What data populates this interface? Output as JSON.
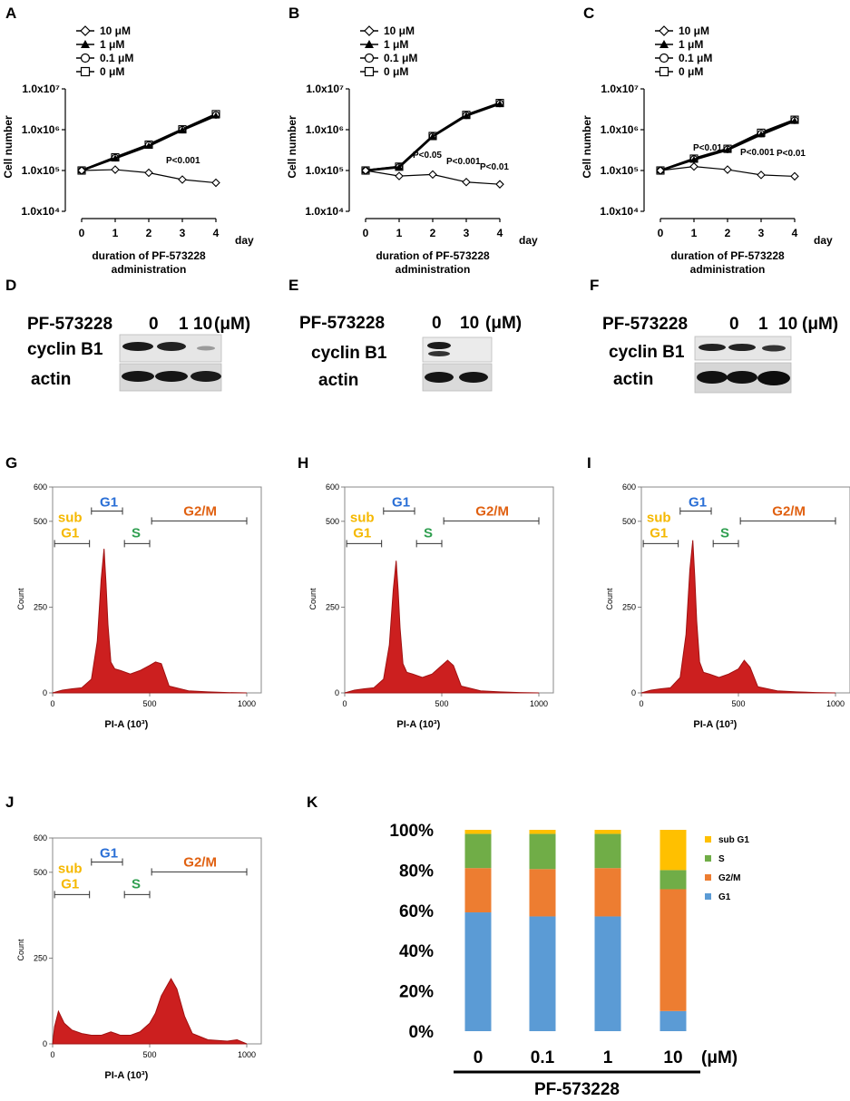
{
  "colors": {
    "hist_fill": "#cc1f1f",
    "hist_stroke": "#a01010",
    "gate_sub": "#f5b800",
    "gate_g1": "#2a6fd6",
    "gate_s": "#2e9e4f",
    "gate_g2m": "#e06010",
    "bar_g1": "#5b9bd5",
    "bar_g2m": "#ed7d31",
    "bar_s": "#70ad47",
    "bar_sub": "#ffc000"
  },
  "panels": {
    "growth": [
      {
        "label": "A",
        "pvalues": [
          "P<0.001"
        ]
      },
      {
        "label": "B",
        "pvalues": [
          "P<0.05",
          "P<0.001",
          "P<0.01"
        ]
      },
      {
        "label": "C",
        "pvalues": [
          "P<0.01",
          "P<0.001",
          "P<0.01"
        ]
      }
    ],
    "growth_common": {
      "y_ticks": [
        "1.0x10⁷",
        "1.0x10⁶",
        "1.0x10⁵",
        "1.0x10⁴"
      ],
      "x_ticks": [
        "0",
        "1",
        "2",
        "3",
        "4"
      ],
      "day": "day",
      "ylabel": "Cell number",
      "xlabel_line1": "duration of PF-573228",
      "xlabel_line2": "administration",
      "legend": [
        "10 μM",
        "1 μM",
        "0.1 μM",
        "0 μM"
      ]
    },
    "western": [
      {
        "label": "D",
        "drug": "PF-573228",
        "doses": [
          "0",
          "1",
          "10"
        ],
        "unit": "(μM)",
        "rows": [
          "cyclin B1",
          "actin"
        ]
      },
      {
        "label": "E",
        "drug": "PF-573228",
        "doses": [
          "0",
          "10"
        ],
        "unit": "(μM)",
        "rows": [
          "cyclin B1",
          "actin"
        ]
      },
      {
        "label": "F",
        "drug": "PF-573228",
        "doses": [
          "0",
          "1",
          "10"
        ],
        "unit": "(μM)",
        "rows": [
          "cyclin B1",
          "actin"
        ]
      }
    ],
    "flow": [
      {
        "label": "G"
      },
      {
        "label": "H"
      },
      {
        "label": "I"
      },
      {
        "label": "J"
      }
    ],
    "flow_common": {
      "y_ticks": [
        "600",
        "500",
        "250",
        "0"
      ],
      "x_ticks": [
        "0",
        "500",
        "1000"
      ],
      "ylabel": "Count",
      "xlabel": "PI-A (10³)",
      "gate_sub_1": "sub",
      "gate_sub_2": "G1",
      "gate_g1": "G1",
      "gate_s": "S",
      "gate_g2m": "G2/M"
    },
    "bar_label": "K"
  },
  "chart_data": [
    {
      "type": "line",
      "panel": "A",
      "title": "",
      "xlabel": "duration of PF-573228 administration",
      "ylabel": "Cell number",
      "yscale": "log",
      "ylim": [
        10000,
        10000000
      ],
      "x": [
        0,
        1,
        2,
        3,
        4
      ],
      "series": [
        {
          "name": "10 μM",
          "values": [
            100000,
            105000,
            88000,
            60000,
            50000
          ]
        },
        {
          "name": "1 μM",
          "values": [
            100000,
            200000,
            400000,
            980000,
            2200000
          ]
        },
        {
          "name": "0.1 μM",
          "values": [
            100000,
            205000,
            420000,
            1000000,
            2300000
          ]
        },
        {
          "name": "0 μM",
          "values": [
            100000,
            210000,
            430000,
            1020000,
            2400000
          ]
        }
      ],
      "annotations": [
        "P<0.001"
      ]
    },
    {
      "type": "line",
      "panel": "B",
      "title": "",
      "xlabel": "duration of PF-573228 administration",
      "ylabel": "Cell number",
      "yscale": "log",
      "ylim": [
        10000,
        10000000
      ],
      "x": [
        0,
        1,
        2,
        3,
        4
      ],
      "series": [
        {
          "name": "10 μM",
          "values": [
            100000,
            73000,
            80000,
            52000,
            46000
          ]
        },
        {
          "name": "1 μM",
          "values": [
            100000,
            120000,
            680000,
            2200000,
            4300000
          ]
        },
        {
          "name": "0.1 μM",
          "values": [
            100000,
            122000,
            690000,
            2250000,
            4400000
          ]
        },
        {
          "name": "0 μM",
          "values": [
            100000,
            124000,
            700000,
            2300000,
            4500000
          ]
        }
      ],
      "annotations": [
        "P<0.05",
        "P<0.001",
        "P<0.01"
      ]
    },
    {
      "type": "line",
      "panel": "C",
      "title": "",
      "xlabel": "duration of PF-573228 administration",
      "ylabel": "Cell number",
      "yscale": "log",
      "ylim": [
        10000,
        10000000
      ],
      "x": [
        0,
        1,
        2,
        3,
        4
      ],
      "series": [
        {
          "name": "10 μM",
          "values": [
            100000,
            125000,
            105000,
            78000,
            72000
          ]
        },
        {
          "name": "1 μM",
          "values": [
            100000,
            185000,
            320000,
            760000,
            1650000
          ]
        },
        {
          "name": "0.1 μM",
          "values": [
            100000,
            190000,
            330000,
            800000,
            1700000
          ]
        },
        {
          "name": "0 μM",
          "values": [
            100000,
            195000,
            340000,
            840000,
            1750000
          ]
        }
      ],
      "annotations": [
        "P<0.01",
        "P<0.001",
        "P<0.01"
      ]
    },
    {
      "type": "area",
      "panel": "G",
      "xlabel": "PI-A (10³)",
      "ylabel": "Count",
      "xlim": [
        0,
        1000
      ],
      "ylim": [
        0,
        600
      ],
      "x": [
        0,
        50,
        100,
        150,
        200,
        230,
        250,
        265,
        275,
        285,
        300,
        320,
        350,
        400,
        450,
        500,
        530,
        560,
        600,
        700,
        800,
        900,
        1000
      ],
      "values": [
        0,
        8,
        12,
        15,
        40,
        150,
        330,
        420,
        320,
        200,
        90,
        70,
        65,
        55,
        65,
        80,
        90,
        85,
        20,
        6,
        3,
        1,
        0
      ]
    },
    {
      "type": "area",
      "panel": "H",
      "xlabel": "PI-A (10³)",
      "ylabel": "Count",
      "xlim": [
        0,
        1000
      ],
      "ylim": [
        0,
        600
      ],
      "x": [
        0,
        50,
        100,
        150,
        200,
        230,
        250,
        265,
        275,
        285,
        300,
        320,
        350,
        400,
        450,
        500,
        530,
        560,
        600,
        700,
        800,
        900,
        1000
      ],
      "values": [
        0,
        8,
        12,
        15,
        40,
        140,
        300,
        385,
        300,
        190,
        85,
        60,
        55,
        45,
        55,
        80,
        95,
        80,
        20,
        6,
        3,
        1,
        0
      ]
    },
    {
      "type": "area",
      "panel": "I",
      "xlabel": "PI-A (10³)",
      "ylabel": "Count",
      "xlim": [
        0,
        1000
      ],
      "ylim": [
        0,
        600
      ],
      "x": [
        0,
        50,
        100,
        150,
        200,
        230,
        250,
        265,
        275,
        285,
        300,
        320,
        350,
        400,
        450,
        500,
        530,
        560,
        600,
        700,
        800,
        900,
        1000
      ],
      "values": [
        0,
        8,
        12,
        15,
        45,
        170,
        360,
        445,
        340,
        210,
        90,
        60,
        55,
        45,
        55,
        70,
        95,
        75,
        18,
        6,
        3,
        1,
        0
      ]
    },
    {
      "type": "area",
      "panel": "J",
      "xlabel": "PI-A (10³)",
      "ylabel": "Count",
      "xlim": [
        0,
        1000
      ],
      "ylim": [
        0,
        600
      ],
      "x": [
        0,
        10,
        30,
        60,
        100,
        150,
        200,
        250,
        300,
        350,
        400,
        450,
        500,
        530,
        560,
        590,
        610,
        640,
        680,
        720,
        800,
        900,
        950,
        1000
      ],
      "values": [
        0,
        50,
        95,
        60,
        40,
        30,
        25,
        25,
        35,
        25,
        25,
        35,
        60,
        90,
        140,
        170,
        190,
        160,
        80,
        30,
        12,
        8,
        12,
        0
      ]
    },
    {
      "type": "bar",
      "panel": "K",
      "stacked": true,
      "categories": [
        "0",
        "0.1",
        "1",
        "10"
      ],
      "unit": "(μM)",
      "xlabel": "PF-573228",
      "ylim": [
        0,
        100
      ],
      "y_ticks": [
        "0%",
        "20%",
        "40%",
        "60%",
        "80%",
        "100%"
      ],
      "series": [
        {
          "name": "G1",
          "values": [
            59,
            57,
            57,
            10
          ]
        },
        {
          "name": "G2/M",
          "values": [
            22,
            23.5,
            24,
            60.5
          ]
        },
        {
          "name": "S",
          "values": [
            17,
            17.5,
            17,
            9.5
          ]
        },
        {
          "name": "sub G1",
          "values": [
            2,
            2,
            2,
            20
          ]
        }
      ],
      "legend_order": [
        "sub G1",
        "S",
        "G2/M",
        "G1"
      ]
    }
  ]
}
